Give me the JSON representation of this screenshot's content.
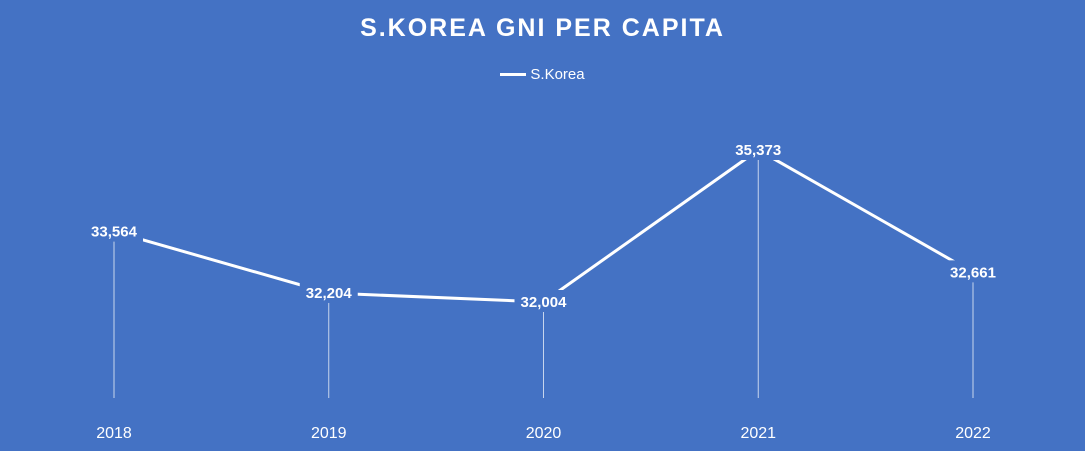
{
  "chart_data": {
    "type": "line",
    "title": "S.KOREA GNI PER CAPITA",
    "categories": [
      "2018",
      "2019",
      "2020",
      "2021",
      "2022"
    ],
    "series": [
      {
        "name": "S.Korea",
        "values": [
          33564,
          32204,
          32004,
          35373,
          32661
        ],
        "labels": [
          "33,564",
          "32,204",
          "32,004",
          "35,373",
          "32,661"
        ]
      }
    ],
    "legend_position": "top-center",
    "grid": false,
    "drop_lines": true,
    "colors": {
      "background": "#4472C4",
      "line": "#FFFFFF",
      "text": "#FFFFFF"
    }
  }
}
